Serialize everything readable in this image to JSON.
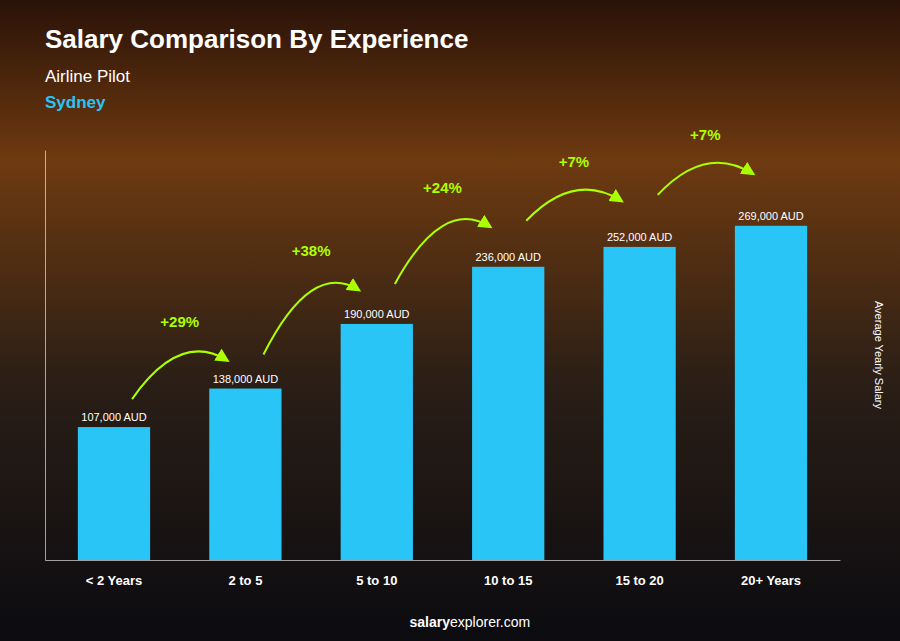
{
  "chart_data": {
    "type": "bar",
    "title": "Salary Comparison By Experience",
    "subtitle": "Airline Pilot",
    "city": "Sydney",
    "city_color": "#29c5f6",
    "categories": [
      "< 2 Years",
      "2 to 5",
      "5 to 10",
      "10 to 15",
      "15 to 20",
      "20+ Years"
    ],
    "values": [
      107000,
      138000,
      190000,
      236000,
      252000,
      269000
    ],
    "value_labels": [
      "107,000 AUD",
      "138,000 AUD",
      "190,000 AUD",
      "236,000 AUD",
      "252,000 AUD",
      "269,000 AUD"
    ],
    "data_labels": true,
    "color": "#29c5f6",
    "pct_changes": [
      null,
      "+29%",
      "+38%",
      "+24%",
      "+7%",
      "+7%"
    ],
    "annotation_color": "#aaff00",
    "ylabel": "Average Yearly Salary",
    "ylim": [
      0,
      330000
    ],
    "tick_labels": "x",
    "grid": false,
    "footer": [
      "salary",
      "explorer.com"
    ]
  }
}
